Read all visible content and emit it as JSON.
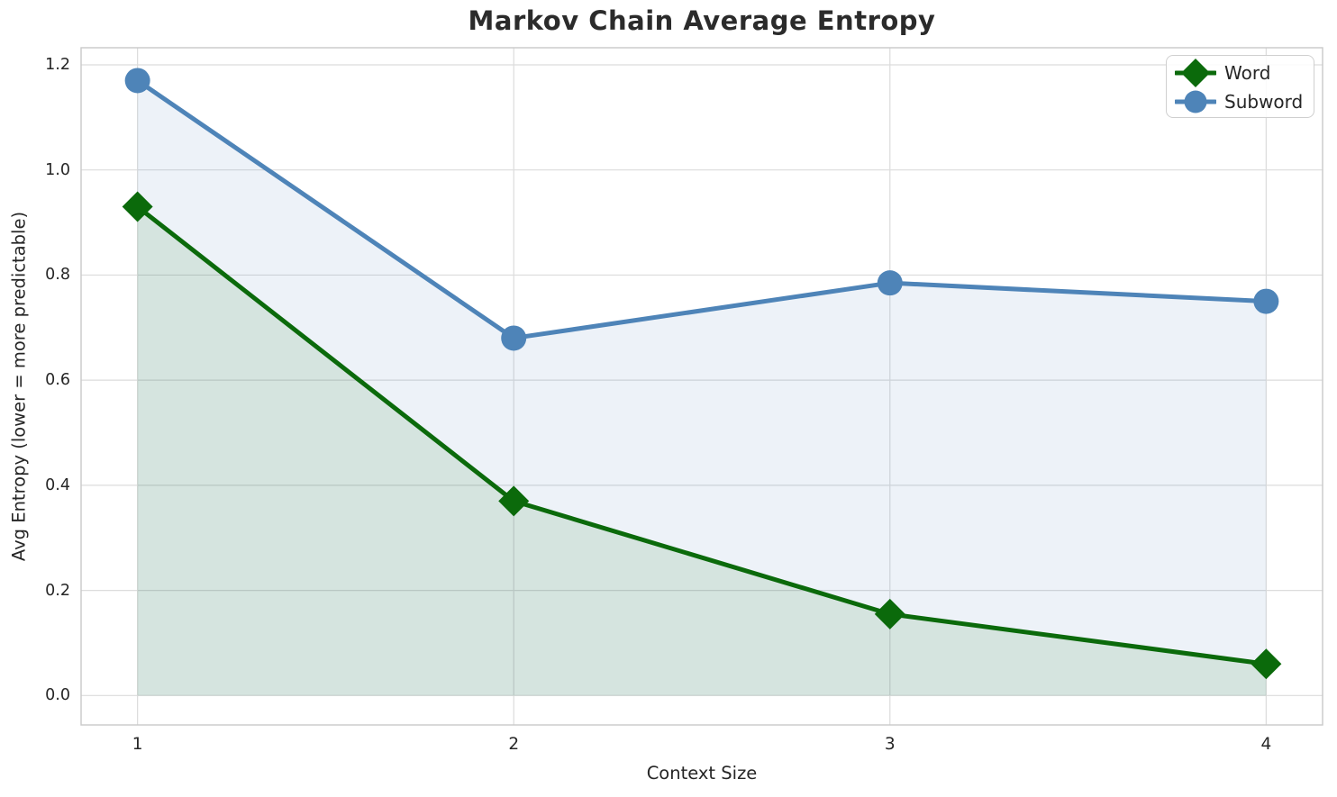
{
  "figure": {
    "title": "Markov Chain Average Entropy"
  },
  "chart_data": {
    "type": "line",
    "title": "Markov Chain Average Entropy",
    "xlabel": "Context Size",
    "ylabel": "Avg Entropy (lower = more predictable)",
    "x": [
      1,
      2,
      3,
      4
    ],
    "series": [
      {
        "name": "Word",
        "values": [
          0.93,
          0.37,
          0.155,
          0.06
        ],
        "color": "#0b6a0b",
        "marker": "diamond",
        "fill_to_zero": true
      },
      {
        "name": "Subword",
        "values": [
          1.17,
          0.68,
          0.785,
          0.75
        ],
        "color": "#4e84b8",
        "marker": "circle",
        "fill_to_zero": true
      }
    ],
    "fill_alpha": 0.1,
    "fill_baseline": 0,
    "xlim": [
      0.85,
      4.15
    ],
    "ylim": [
      -0.056,
      1.2325
    ],
    "xticks": [
      1,
      2,
      3,
      4
    ],
    "xtick_labels": [
      "1",
      "2",
      "3",
      "4"
    ],
    "yticks": [
      0.0,
      0.2,
      0.4,
      0.6,
      0.8,
      1.0,
      1.2
    ],
    "ytick_labels": [
      "0.0",
      "0.2",
      "0.4",
      "0.6",
      "0.8",
      "1.0",
      "1.2"
    ],
    "grid": true,
    "legend": {
      "position": "upper right",
      "entries": [
        "Word",
        "Subword"
      ]
    },
    "colors": {
      "grid": "#dcdcdc",
      "spine": "#c9c9c9",
      "text": "#262626"
    }
  }
}
